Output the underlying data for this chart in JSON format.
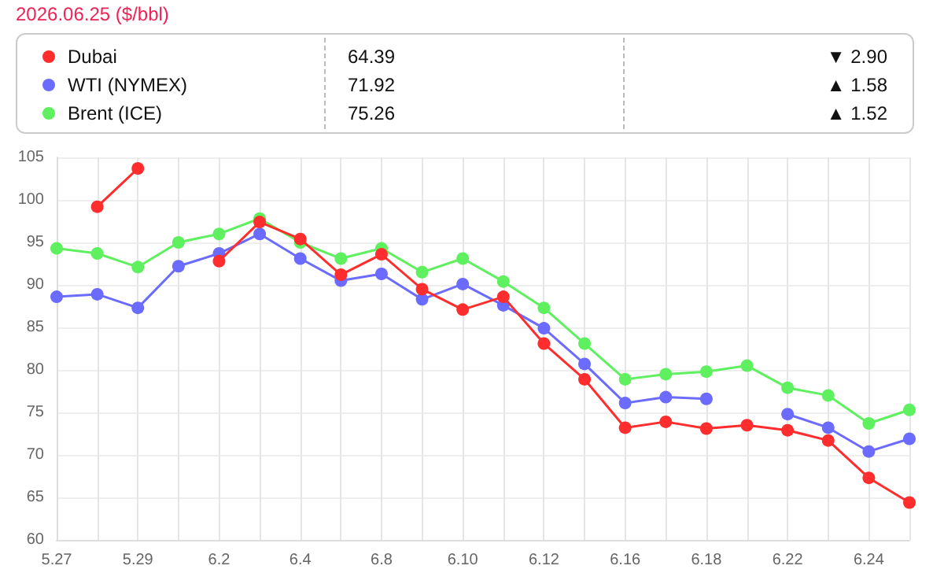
{
  "chart_data": {
    "type": "line",
    "title": "2026.06.25 ($/bbl)",
    "categories": [
      "5.27",
      null,
      "5.29",
      null,
      "6.2",
      null,
      "6.4",
      null,
      "6.8",
      null,
      "6.10",
      null,
      "6.12",
      null,
      "6.16",
      null,
      "6.18",
      null,
      "6.22",
      null,
      "6.24",
      null
    ],
    "series": [
      {
        "name": "Dubai",
        "color": "#ff2d2d",
        "values": [
          null,
          99.2,
          103.7,
          null,
          92.8,
          97.4,
          95.4,
          91.2,
          93.6,
          89.5,
          87.1,
          88.6,
          83.1,
          78.9,
          73.2,
          73.9,
          73.1,
          73.5,
          72.9,
          71.7,
          67.3,
          64.4
        ]
      },
      {
        "name": "WTI (NYMEX)",
        "color": "#6b6bff",
        "values": [
          88.6,
          88.9,
          87.3,
          92.2,
          93.7,
          96.0,
          93.1,
          90.5,
          91.3,
          88.3,
          90.1,
          87.6,
          84.9,
          80.7,
          76.1,
          76.8,
          76.6,
          null,
          74.8,
          73.2,
          70.4,
          71.9
        ]
      },
      {
        "name": "Brent (ICE)",
        "color": "#5ff05f",
        "values": [
          94.3,
          93.7,
          92.1,
          95.0,
          96.0,
          97.8,
          95.0,
          93.1,
          94.3,
          91.5,
          93.1,
          90.4,
          87.3,
          83.1,
          78.9,
          79.5,
          79.8,
          80.5,
          77.9,
          77.0,
          73.7,
          75.3
        ]
      }
    ],
    "annotations": [
      "64.39",
      "71.92",
      "75.26",
      "▼ 2.90",
      "▲ 1.58",
      "▲ 1.52"
    ],
    "ylim": [
      60,
      105
    ],
    "yticks": [
      60,
      65,
      70,
      75,
      80,
      85,
      90,
      95,
      100,
      105
    ],
    "grid": true,
    "legend": "top",
    "marker": "circle",
    "line_style": "solid"
  }
}
